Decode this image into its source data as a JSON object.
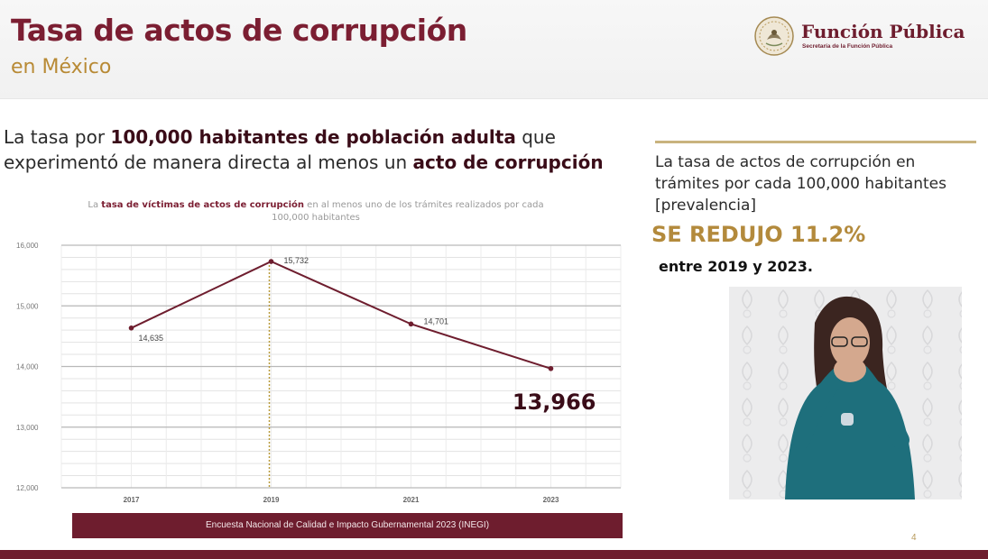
{
  "header": {
    "title": "Tasa de actos de corrupción",
    "subtitle": "en México",
    "logo_name": "Función Pública",
    "logo_subtitle": "Secretaría de la Función Pública"
  },
  "description": {
    "part1": "La tasa por ",
    "bold1": "100,000 habitantes de población adulta",
    "part2": " que experimentó de manera directa al menos un ",
    "bold2": "acto de corrupción"
  },
  "chart_title": {
    "prefix": "La ",
    "bold": "tasa de víctimas de actos de corrupción",
    "suffix": " en al menos uno de los trámites realizados por cada 100,000 habitantes"
  },
  "chart_data": {
    "type": "line",
    "title": "La tasa de víctimas de actos de corrupción en al menos uno de los trámites realizados por cada 100,000 habitantes",
    "categories": [
      "2017",
      "2019",
      "2021",
      "2023"
    ],
    "values": [
      14635,
      15732,
      14701,
      13966
    ],
    "data_labels": [
      "14,635",
      "15,732",
      "14,701",
      "13,966"
    ],
    "y_ticks": [
      "12,000",
      "13,000",
      "14,000",
      "15,000",
      "16,000"
    ],
    "ylim": [
      12000,
      16000
    ],
    "grid": true,
    "highlight_category": "2019",
    "highlight_value_label": "13,966",
    "line_color": "#6e1d2e",
    "highlight_line_color": "#b89a3a"
  },
  "source": "Encuesta Nacional de Calidad e Impacto Gubernamental 2023 (INEGI)",
  "panel": {
    "text": "La tasa de actos de corrupción en trámites por cada 100,000 habitantes [prevalencia]",
    "highlight": "SE REDUJO 11.2%",
    "note": "entre 2019 y 2023."
  },
  "page_number": "4",
  "colors": {
    "brand": "#7b1e32",
    "gold": "#b88a35",
    "dark_bar": "#6e1d2e"
  }
}
